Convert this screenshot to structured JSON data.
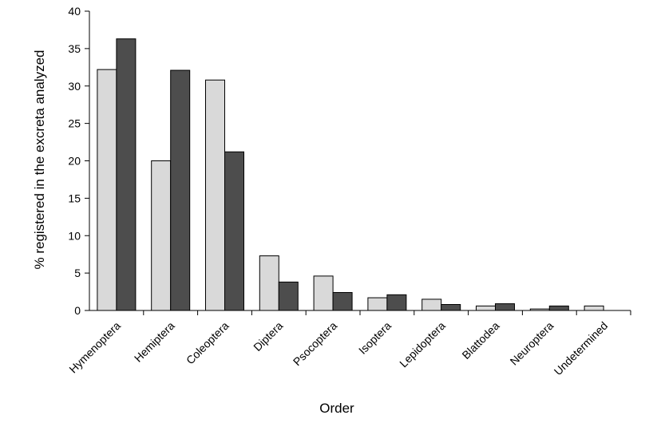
{
  "chart_data": {
    "type": "bar",
    "title": "",
    "xlabel": "Order",
    "ylabel": "% registered in the excreta analyzed",
    "ylim": [
      0,
      40
    ],
    "yticks": [
      0,
      5,
      10,
      15,
      20,
      25,
      30,
      35,
      40
    ],
    "grid": false,
    "legend": "none",
    "categories": [
      "Hymenoptera",
      "Hemiptera",
      "Coleoptera",
      "Diptera",
      "Psocoptera",
      "Isoptera",
      "Lepidoptera",
      "Blattodea",
      "Neuroptera",
      "Undetermined"
    ],
    "series": [
      {
        "color": "#d9d9d9",
        "values": [
          32.2,
          20.0,
          30.8,
          7.3,
          4.6,
          1.7,
          1.5,
          0.6,
          0.2,
          0.6
        ]
      },
      {
        "color": "#4d4d4d",
        "values": [
          36.3,
          32.1,
          21.2,
          3.8,
          2.4,
          2.1,
          0.8,
          0.9,
          0.6,
          0
        ]
      }
    ]
  }
}
